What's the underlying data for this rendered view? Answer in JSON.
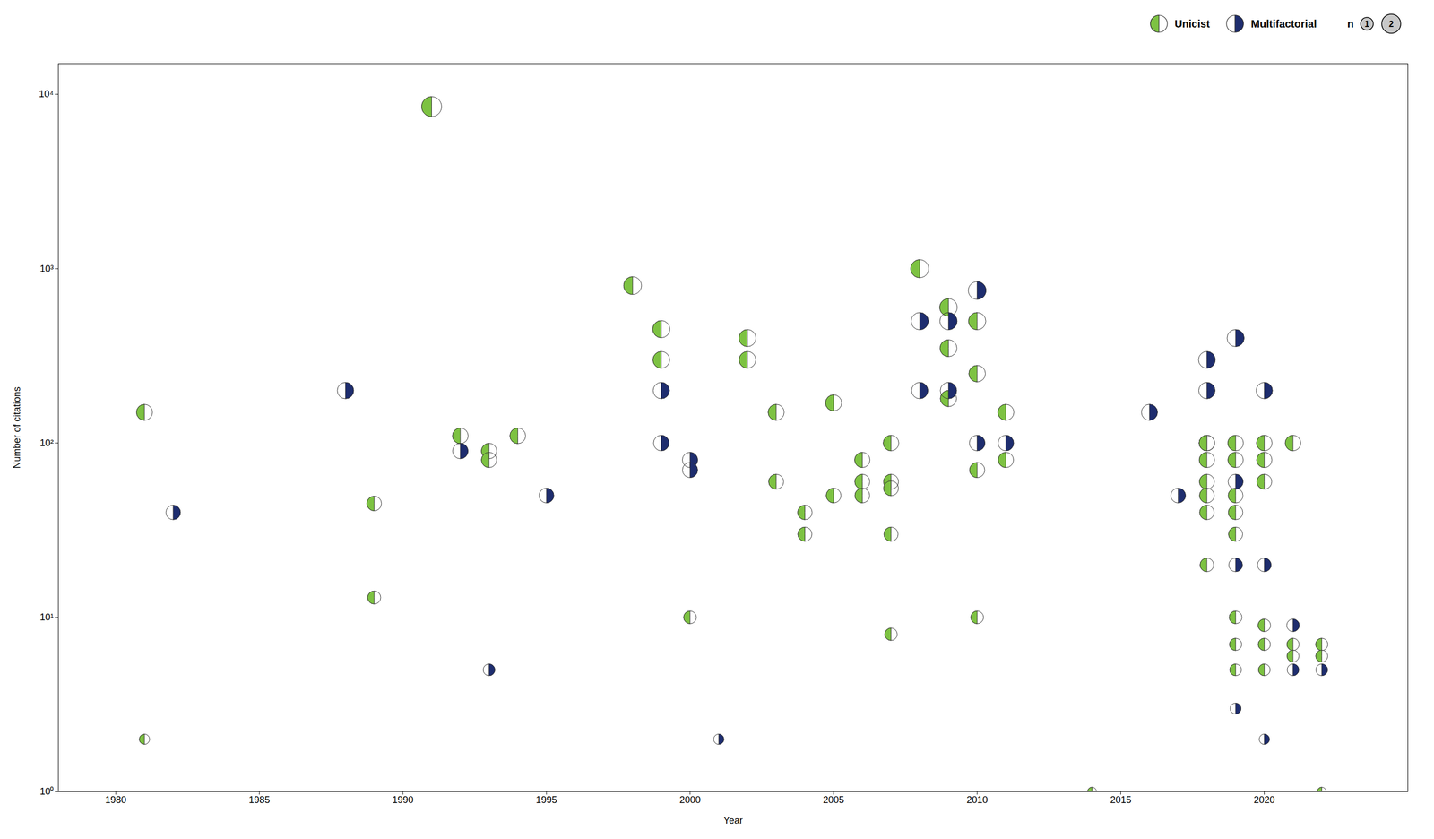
{
  "chart_data": {
    "type": "scatter",
    "xlabel": "Year",
    "ylabel": "Number of citations",
    "xlim": [
      1978,
      2025
    ],
    "xticks": [
      1980,
      1985,
      1990,
      1995,
      2000,
      2005,
      2010,
      2015,
      2020
    ],
    "ylim": [
      1,
      15000
    ],
    "yticks": [
      {
        "value": 1,
        "label": "10⁰"
      },
      {
        "value": 10,
        "label": "10¹"
      },
      {
        "value": 100,
        "label": "10²"
      },
      {
        "value": 1000,
        "label": "10³"
      },
      {
        "value": 10000,
        "label": "10⁴"
      }
    ],
    "log": "y",
    "grid": false,
    "edge_color": "#333333",
    "series": [
      {
        "name": "Unicist",
        "color": "#7dc242",
        "marker": "left_half_circle",
        "x": [
          1981,
          1981,
          1989,
          1989,
          1991,
          1992,
          1993,
          1993,
          1994,
          1998,
          1999,
          1999,
          2000,
          2002,
          2002,
          2003,
          2003,
          2004,
          2004,
          2005,
          2005,
          2006,
          2006,
          2006,
          2007,
          2007,
          2007,
          2007,
          2007,
          2008,
          2009,
          2009,
          2009,
          2010,
          2010,
          2010,
          2010,
          2011,
          2011,
          2014,
          2018,
          2018,
          2018,
          2018,
          2018,
          2018,
          2018,
          2019,
          2019,
          2019,
          2019,
          2019,
          2019,
          2019,
          2019,
          2020,
          2020,
          2020,
          2020,
          2020,
          2020,
          2021,
          2021,
          2021,
          2022,
          2022,
          2022
        ],
        "values": [
          150,
          2,
          45,
          13,
          8500,
          110,
          90,
          80,
          110,
          800,
          450,
          300,
          10,
          400,
          300,
          150,
          60,
          40,
          30,
          170,
          50,
          80,
          60,
          50,
          100,
          60,
          55,
          30,
          8,
          1000,
          600,
          350,
          180,
          500,
          250,
          70,
          10,
          150,
          80,
          1,
          100,
          100,
          80,
          60,
          50,
          40,
          20,
          100,
          80,
          50,
          40,
          30,
          10,
          7,
          5,
          100,
          80,
          60,
          9,
          7,
          5,
          100,
          7,
          6,
          1,
          7,
          6
        ]
      },
      {
        "name": "Multifactorial",
        "color": "#1e2d6e",
        "marker": "right_half_circle",
        "x": [
          1982,
          1988,
          1992,
          1993,
          1995,
          1999,
          1999,
          2000,
          2000,
          2001,
          2008,
          2008,
          2009,
          2009,
          2010,
          2010,
          2011,
          2016,
          2017,
          2018,
          2018,
          2019,
          2019,
          2019,
          2019,
          2020,
          2020,
          2020,
          2021,
          2021,
          2022
        ],
        "values": [
          40,
          200,
          90,
          5,
          50,
          200,
          100,
          80,
          70,
          2,
          500,
          200,
          500,
          200,
          750,
          100,
          100,
          150,
          50,
          300,
          200,
          400,
          60,
          20,
          3,
          200,
          20,
          2,
          9,
          5,
          5
        ]
      }
    ],
    "size_legend": {
      "title": "n",
      "values": [
        1,
        2
      ],
      "color": "#c8c8c8"
    }
  }
}
